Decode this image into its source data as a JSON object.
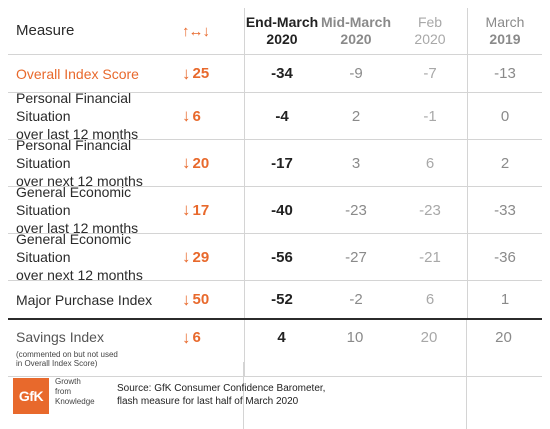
{
  "header": {
    "measure": "Measure",
    "change_arrows": "↑↔↓",
    "end_march_line1": "End-March",
    "end_march_line2": "2020",
    "mid_march_line1": "Mid-March",
    "mid_march_line2": "2020",
    "feb_line1": "Feb",
    "feb_line2": "2020",
    "march_line1": "March",
    "march_line2": "2019"
  },
  "rows": [
    {
      "measure": "Overall Index Score",
      "change": "25",
      "end_march": "-34",
      "mid_march": "-9",
      "feb": "-7",
      "march_2019": "-13"
    },
    {
      "measure_l1": "Personal Financial Situation",
      "measure_l2": "over last 12 months",
      "change": "6",
      "end_march": "-4",
      "mid_march": "2",
      "feb": "-1",
      "march_2019": "0"
    },
    {
      "measure_l1": "Personal Financial Situation",
      "measure_l2": "over next 12 months",
      "change": "20",
      "end_march": "-17",
      "mid_march": "3",
      "feb": "6",
      "march_2019": "2"
    },
    {
      "measure_l1": "General Economic Situation",
      "measure_l2": "over last 12 months",
      "change": "17",
      "end_march": "-40",
      "mid_march": "-23",
      "feb": "-23",
      "march_2019": "-33"
    },
    {
      "measure_l1": "General Economic Situation",
      "measure_l2": "over next 12 months",
      "change": "29",
      "end_march": "-56",
      "mid_march": "-27",
      "feb": "-21",
      "march_2019": "-36"
    },
    {
      "measure": "Major Purchase Index",
      "change": "50",
      "end_march": "-52",
      "mid_march": "-2",
      "feb": "6",
      "march_2019": "1"
    },
    {
      "measure": "Savings Index",
      "note_l1": "(commented on but not used",
      "note_l2": "in Overall Index Score)",
      "change": "6",
      "end_march": "4",
      "mid_march": "10",
      "feb": "20",
      "march_2019": "20"
    }
  ],
  "arrow_glyph": "↓",
  "footer": {
    "logo_text": "GfK",
    "tagline_l1": "Growth",
    "tagline_l2": "from",
    "tagline_l3": "Knowledge",
    "source_l1": "Source: GfK Consumer Confidence Barometer,",
    "source_l2": "flash measure for last half of March 2020"
  },
  "colors": {
    "accent": "#e8692c",
    "text": "#2b2b2b",
    "muted": "#8a8a8a",
    "rule": "#d4d4d4"
  }
}
